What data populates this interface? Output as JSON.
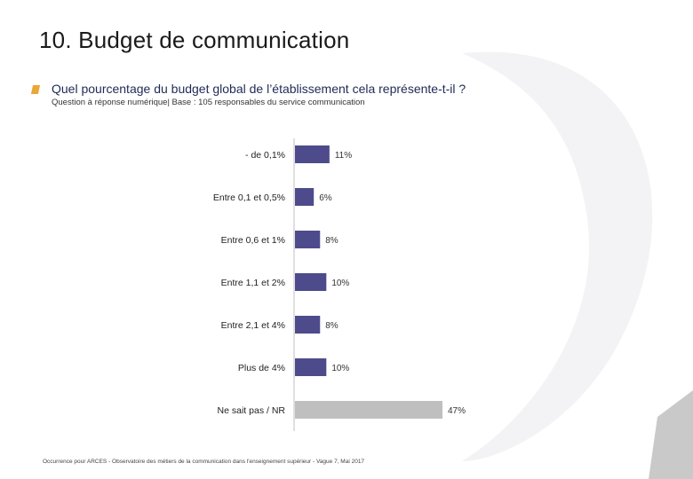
{
  "page": {
    "title": "10. Budget de communication",
    "question": "Quel pourcentage du budget global de l’établissement cela représente-t-il ?",
    "subnote": "Question à réponse numérique| Base : 105 responsables du service communication",
    "footer": "Occurrence pour ARCES - Observatoire des métiers de la communication dans l'enseignement supérieur - Vague 7, Mai 2017"
  },
  "colors": {
    "bar": "#4e4b8c",
    "bar_nsp": "#bfbfbf",
    "accent": "#e8a736",
    "axis": "#bfbfbf"
  },
  "chart_data": {
    "type": "bar",
    "orientation": "horizontal",
    "title": "",
    "xlabel": "",
    "ylabel": "",
    "xlim": [
      0,
      47
    ],
    "grid": false,
    "categories": [
      "- de 0,1%",
      "Entre 0,1 et 0,5%",
      "Entre 0,6 et 1%",
      "Entre 1,1 et 2%",
      "Entre 2,1 et 4%",
      "Plus de 4%",
      "Ne sait pas / NR"
    ],
    "values": [
      11,
      6,
      8,
      10,
      8,
      10,
      47
    ],
    "value_labels": [
      "11%",
      "6%",
      "8%",
      "10%",
      "8%",
      "10%",
      "47%"
    ]
  }
}
